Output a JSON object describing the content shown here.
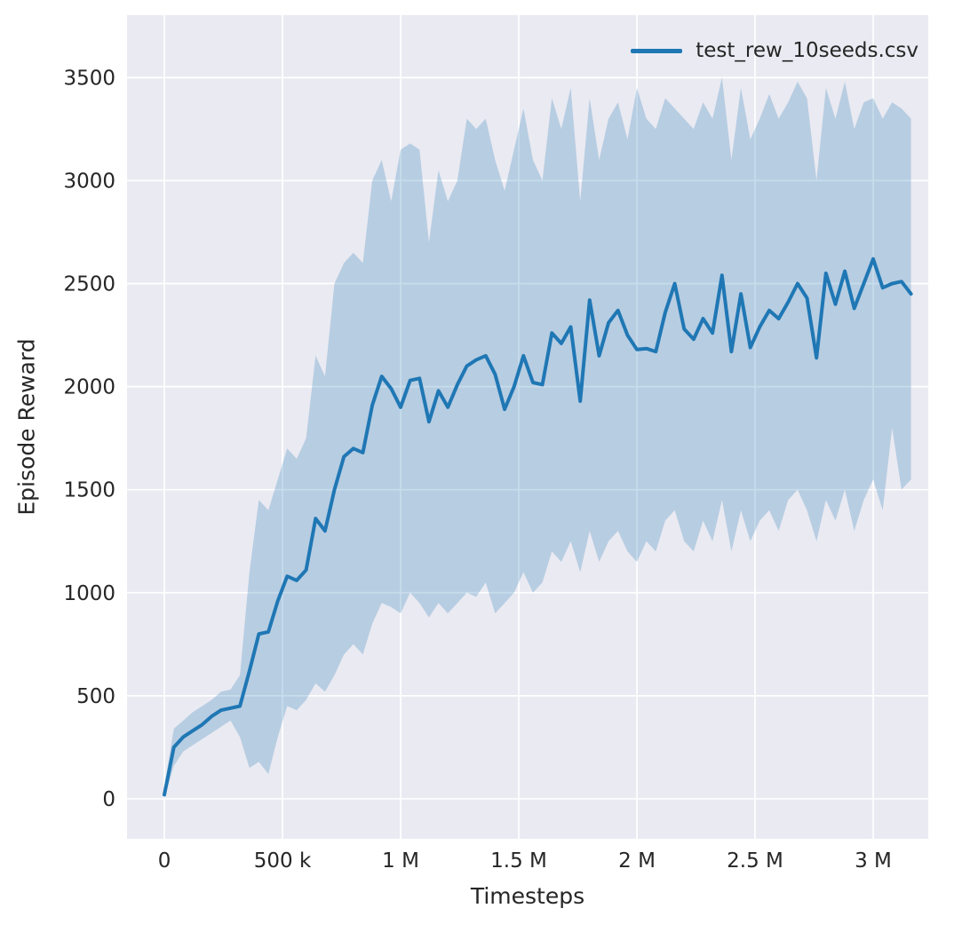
{
  "chart_data": {
    "type": "line",
    "title": "",
    "xlabel": "Timesteps",
    "ylabel": "Episode Reward",
    "legend": [
      "test_rew_10seeds.csv"
    ],
    "legend_position": "upper right",
    "grid": true,
    "plot_bg": "#eaeaf2",
    "grid_color": "#ffffff",
    "text_color": "#262626",
    "xlim": [
      -158000,
      3233000
    ],
    "ylim": [
      -194,
      3803
    ],
    "xticks": {
      "values": [
        0,
        500000,
        1000000,
        1500000,
        2000000,
        2500000,
        3000000
      ],
      "labels": [
        "0",
        "500 k",
        "1 M",
        "1.5 M",
        "2 M",
        "2.5 M",
        "3 M"
      ]
    },
    "yticks": {
      "values": [
        0,
        500,
        1000,
        1500,
        2000,
        2500,
        3000,
        3500
      ],
      "labels": [
        "0",
        "500",
        "1000",
        "1500",
        "2000",
        "2500",
        "3000",
        "3500"
      ]
    },
    "x": [
      0,
      40000,
      80000,
      120000,
      160000,
      200000,
      240000,
      280000,
      320000,
      360000,
      400000,
      440000,
      480000,
      520000,
      560000,
      600000,
      640000,
      680000,
      720000,
      760000,
      800000,
      840000,
      880000,
      920000,
      960000,
      1000000,
      1040000,
      1080000,
      1120000,
      1160000,
      1200000,
      1240000,
      1280000,
      1320000,
      1360000,
      1400000,
      1440000,
      1480000,
      1520000,
      1560000,
      1600000,
      1640000,
      1680000,
      1720000,
      1760000,
      1800000,
      1840000,
      1880000,
      1920000,
      1960000,
      2000000,
      2040000,
      2080000,
      2120000,
      2160000,
      2200000,
      2240000,
      2280000,
      2320000,
      2360000,
      2400000,
      2440000,
      2480000,
      2520000,
      2560000,
      2600000,
      2640000,
      2680000,
      2720000,
      2760000,
      2800000,
      2840000,
      2880000,
      2920000,
      2960000,
      3000000,
      3040000,
      3080000,
      3120000,
      3160000
    ],
    "series": [
      {
        "name": "test_rew_10seeds.csv",
        "color": "#1f77b4",
        "band_opacity": 0.25,
        "values": [
          20,
          250,
          300,
          330,
          360,
          400,
          430,
          440,
          450,
          620,
          800,
          810,
          960,
          1080,
          1060,
          1110,
          1360,
          1300,
          1500,
          1660,
          1700,
          1680,
          1910,
          2050,
          1990,
          1900,
          2030,
          2040,
          1830,
          1980,
          1900,
          2010,
          2100,
          2130,
          2150,
          2060,
          1890,
          2000,
          2150,
          2020,
          2010,
          2260,
          2210,
          2290,
          1930,
          2420,
          2150,
          2310,
          2370,
          2250,
          2180,
          2185,
          2170,
          2360,
          2500,
          2280,
          2230,
          2330,
          2260,
          2540,
          2170,
          2450,
          2190,
          2290,
          2370,
          2330,
          2410,
          2500,
          2430,
          2140,
          2550,
          2400,
          2560,
          2380,
          2500,
          2620,
          2480,
          2500,
          2510,
          2450
        ],
        "band_low": [
          0,
          160,
          230,
          260,
          290,
          320,
          350,
          380,
          300,
          150,
          180,
          120,
          300,
          450,
          430,
          480,
          560,
          520,
          600,
          700,
          750,
          700,
          850,
          950,
          930,
          900,
          1000,
          950,
          880,
          950,
          900,
          950,
          1000,
          980,
          1050,
          900,
          950,
          1000,
          1100,
          1000,
          1050,
          1200,
          1150,
          1250,
          1100,
          1300,
          1150,
          1250,
          1300,
          1200,
          1150,
          1250,
          1200,
          1350,
          1400,
          1250,
          1200,
          1350,
          1250,
          1450,
          1200,
          1400,
          1250,
          1350,
          1400,
          1300,
          1450,
          1500,
          1400,
          1250,
          1450,
          1350,
          1500,
          1300,
          1450,
          1550,
          1400,
          1800,
          1500,
          1550
        ],
        "band_high": [
          60,
          340,
          380,
          420,
          450,
          480,
          520,
          530,
          600,
          1100,
          1450,
          1400,
          1550,
          1700,
          1650,
          1750,
          2150,
          2050,
          2500,
          2600,
          2650,
          2600,
          3000,
          3100,
          2900,
          3150,
          3180,
          3150,
          2700,
          3050,
          2900,
          3000,
          3300,
          3250,
          3300,
          3100,
          2950,
          3150,
          3350,
          3100,
          3000,
          3400,
          3250,
          3450,
          2900,
          3400,
          3100,
          3300,
          3380,
          3200,
          3450,
          3300,
          3250,
          3400,
          3350,
          3300,
          3250,
          3380,
          3300,
          3500,
          3100,
          3450,
          3200,
          3300,
          3420,
          3300,
          3380,
          3480,
          3400,
          3000,
          3450,
          3300,
          3480,
          3250,
          3380,
          3400,
          3300,
          3380,
          3350,
          3300
        ]
      }
    ]
  }
}
